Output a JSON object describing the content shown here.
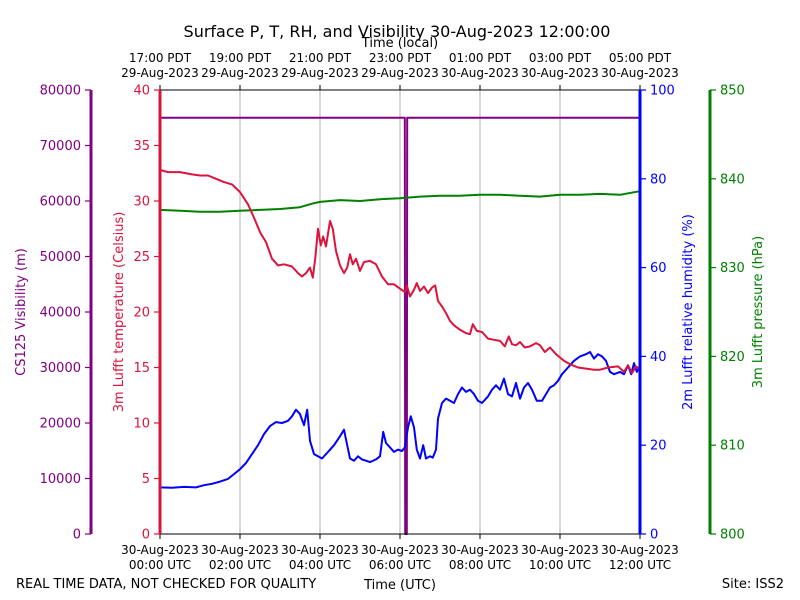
{
  "chart_data": {
    "type": "line",
    "title": "Surface P, T, RH, and Visibility 30-Aug-2023 12:00:00",
    "top_axis_label": "Time (local)",
    "bottom_axis_label": "Time (UTC)",
    "footer_left": "REAL TIME DATA, NOT CHECKED FOR QUALITY",
    "footer_right": "Site: ISS2",
    "colors": {
      "visibility": "#800080",
      "temperature": "#dc143c",
      "humidity": "#0000ff",
      "pressure": "#008000",
      "grid": "#b0b0b0"
    },
    "x_range_hours_utc": [
      0,
      12
    ],
    "x_ticks_hours": [
      0,
      2,
      4,
      6,
      8,
      10,
      12
    ],
    "bottom_tick_labels": [
      [
        "30-Aug-2023",
        "00:00 UTC"
      ],
      [
        "30-Aug-2023",
        "02:00 UTC"
      ],
      [
        "30-Aug-2023",
        "04:00 UTC"
      ],
      [
        "30-Aug-2023",
        "06:00 UTC"
      ],
      [
        "30-Aug-2023",
        "08:00 UTC"
      ],
      [
        "30-Aug-2023",
        "10:00 UTC"
      ],
      [
        "30-Aug-2023",
        "12:00 UTC"
      ]
    ],
    "top_tick_labels": [
      [
        "17:00 PDT",
        "29-Aug-2023"
      ],
      [
        "19:00 PDT",
        "29-Aug-2023"
      ],
      [
        "21:00 PDT",
        "29-Aug-2023"
      ],
      [
        "23:00 PDT",
        "29-Aug-2023"
      ],
      [
        "01:00 PDT",
        "30-Aug-2023"
      ],
      [
        "03:00 PDT",
        "30-Aug-2023"
      ],
      [
        "05:00 PDT",
        "30-Aug-2023"
      ]
    ],
    "axes": {
      "visibility": {
        "label": "CS125 Visibility (m)",
        "range": [
          0,
          80000
        ],
        "ticks": [
          0,
          10000,
          20000,
          30000,
          40000,
          50000,
          60000,
          70000,
          80000
        ]
      },
      "temperature": {
        "label": "3m Lufft temperature (Celsius)",
        "range": [
          0,
          40
        ],
        "ticks": [
          0,
          5,
          10,
          15,
          20,
          25,
          30,
          35,
          40
        ]
      },
      "humidity": {
        "label": "2m Lufft relative humidity (%)",
        "range": [
          0,
          100
        ],
        "ticks": [
          0,
          20,
          40,
          60,
          80,
          100
        ]
      },
      "pressure": {
        "label": "3m Lufft pressure (hPa)",
        "range": [
          800,
          850
        ],
        "ticks": [
          800,
          810,
          820,
          830,
          840,
          850
        ]
      }
    },
    "grid": "vertical",
    "series": [
      {
        "name": "CS125 Visibility (m)",
        "axis": "visibility",
        "points": [
          [
            0,
            75000
          ],
          [
            6.12,
            75000
          ],
          [
            6.13,
            0
          ],
          [
            6.17,
            0
          ],
          [
            6.18,
            75000
          ],
          [
            12,
            75000
          ]
        ]
      },
      {
        "name": "3m Lufft temperature (Celsius)",
        "axis": "temperature",
        "points": [
          [
            0,
            32.8
          ],
          [
            0.2,
            32.6
          ],
          [
            0.5,
            32.6
          ],
          [
            0.8,
            32.4
          ],
          [
            1.0,
            32.3
          ],
          [
            1.2,
            32.3
          ],
          [
            1.4,
            32.0
          ],
          [
            1.6,
            31.7
          ],
          [
            1.8,
            31.5
          ],
          [
            2.0,
            30.8
          ],
          [
            2.2,
            29.7
          ],
          [
            2.35,
            28.5
          ],
          [
            2.5,
            27.2
          ],
          [
            2.65,
            26.3
          ],
          [
            2.8,
            24.8
          ],
          [
            2.95,
            24.2
          ],
          [
            3.1,
            24.3
          ],
          [
            3.3,
            24.1
          ],
          [
            3.45,
            23.5
          ],
          [
            3.55,
            23.2
          ],
          [
            3.65,
            23.5
          ],
          [
            3.75,
            24.0
          ],
          [
            3.82,
            23.1
          ],
          [
            3.88,
            24.8
          ],
          [
            3.95,
            27.5
          ],
          [
            4.02,
            26.0
          ],
          [
            4.08,
            26.8
          ],
          [
            4.15,
            25.9
          ],
          [
            4.25,
            28.2
          ],
          [
            4.32,
            27.5
          ],
          [
            4.4,
            25.5
          ],
          [
            4.5,
            24.2
          ],
          [
            4.6,
            23.5
          ],
          [
            4.68,
            24.0
          ],
          [
            4.75,
            25.2
          ],
          [
            4.82,
            24.3
          ],
          [
            4.9,
            24.8
          ],
          [
            5.0,
            23.7
          ],
          [
            5.1,
            24.5
          ],
          [
            5.25,
            24.6
          ],
          [
            5.4,
            24.3
          ],
          [
            5.55,
            23.2
          ],
          [
            5.7,
            22.5
          ],
          [
            5.85,
            22.5
          ],
          [
            6.0,
            22.1
          ],
          [
            6.12,
            21.8
          ],
          [
            6.17,
            22.4
          ],
          [
            6.25,
            21.4
          ],
          [
            6.35,
            22.0
          ],
          [
            6.42,
            22.6
          ],
          [
            6.5,
            21.9
          ],
          [
            6.6,
            22.3
          ],
          [
            6.7,
            21.7
          ],
          [
            6.8,
            22.2
          ],
          [
            6.88,
            22.4
          ],
          [
            6.95,
            21.0
          ],
          [
            7.05,
            20.5
          ],
          [
            7.15,
            19.9
          ],
          [
            7.25,
            19.2
          ],
          [
            7.35,
            18.8
          ],
          [
            7.5,
            18.4
          ],
          [
            7.65,
            18.1
          ],
          [
            7.75,
            18.0
          ],
          [
            7.82,
            18.9
          ],
          [
            7.92,
            18.3
          ],
          [
            8.05,
            18.2
          ],
          [
            8.2,
            17.6
          ],
          [
            8.35,
            17.5
          ],
          [
            8.5,
            17.4
          ],
          [
            8.62,
            16.9
          ],
          [
            8.72,
            17.8
          ],
          [
            8.8,
            17.1
          ],
          [
            8.9,
            17.0
          ],
          [
            9.0,
            17.3
          ],
          [
            9.12,
            16.8
          ],
          [
            9.25,
            16.9
          ],
          [
            9.4,
            17.2
          ],
          [
            9.5,
            17.0
          ],
          [
            9.62,
            16.4
          ],
          [
            9.75,
            16.8
          ],
          [
            9.9,
            16.2
          ],
          [
            10.0,
            15.9
          ],
          [
            10.1,
            15.6
          ],
          [
            10.25,
            15.3
          ],
          [
            10.45,
            15.0
          ],
          [
            10.65,
            14.9
          ],
          [
            10.85,
            14.8
          ],
          [
            11.0,
            14.8
          ],
          [
            11.2,
            15.0
          ],
          [
            11.45,
            15.1
          ],
          [
            11.6,
            14.6
          ],
          [
            11.7,
            15.2
          ],
          [
            11.8,
            14.5
          ],
          [
            11.9,
            15.1
          ],
          [
            12.0,
            14.8
          ]
        ]
      },
      {
        "name": "2m Lufft relative humidity (%)",
        "axis": "humidity",
        "points": [
          [
            0,
            10.5
          ],
          [
            0.3,
            10.4
          ],
          [
            0.6,
            10.6
          ],
          [
            0.9,
            10.5
          ],
          [
            1.1,
            11.0
          ],
          [
            1.3,
            11.3
          ],
          [
            1.5,
            11.8
          ],
          [
            1.7,
            12.4
          ],
          [
            1.85,
            13.5
          ],
          [
            2.0,
            14.6
          ],
          [
            2.15,
            16.0
          ],
          [
            2.3,
            18.0
          ],
          [
            2.45,
            20.0
          ],
          [
            2.6,
            22.5
          ],
          [
            2.75,
            24.3
          ],
          [
            2.9,
            25.2
          ],
          [
            3.05,
            25.0
          ],
          [
            3.2,
            25.5
          ],
          [
            3.3,
            26.5
          ],
          [
            3.4,
            28.0
          ],
          [
            3.5,
            27.0
          ],
          [
            3.6,
            24.5
          ],
          [
            3.68,
            28.0
          ],
          [
            3.75,
            21.0
          ],
          [
            3.85,
            18.0
          ],
          [
            3.95,
            17.5
          ],
          [
            4.05,
            17.0
          ],
          [
            4.2,
            18.5
          ],
          [
            4.35,
            20.0
          ],
          [
            4.5,
            22.0
          ],
          [
            4.6,
            23.5
          ],
          [
            4.68,
            20.0
          ],
          [
            4.75,
            17.0
          ],
          [
            4.85,
            16.5
          ],
          [
            4.95,
            17.5
          ],
          [
            5.05,
            16.8
          ],
          [
            5.15,
            16.5
          ],
          [
            5.25,
            16.2
          ],
          [
            5.4,
            16.8
          ],
          [
            5.5,
            17.5
          ],
          [
            5.58,
            23.0
          ],
          [
            5.65,
            20.5
          ],
          [
            5.75,
            19.5
          ],
          [
            5.85,
            18.5
          ],
          [
            5.95,
            19.0
          ],
          [
            6.05,
            18.7
          ],
          [
            6.12,
            19.5
          ],
          [
            6.2,
            24.0
          ],
          [
            6.27,
            26.5
          ],
          [
            6.35,
            24.0
          ],
          [
            6.42,
            19.0
          ],
          [
            6.5,
            17.0
          ],
          [
            6.58,
            20.0
          ],
          [
            6.65,
            17.0
          ],
          [
            6.75,
            17.5
          ],
          [
            6.82,
            17.2
          ],
          [
            6.9,
            19.0
          ],
          [
            6.95,
            26.0
          ],
          [
            7.05,
            29.5
          ],
          [
            7.15,
            30.5
          ],
          [
            7.25,
            30.0
          ],
          [
            7.35,
            29.5
          ],
          [
            7.45,
            31.5
          ],
          [
            7.55,
            33.0
          ],
          [
            7.65,
            32.0
          ],
          [
            7.75,
            32.5
          ],
          [
            7.85,
            31.5
          ],
          [
            7.95,
            30.0
          ],
          [
            8.05,
            29.5
          ],
          [
            8.2,
            31.0
          ],
          [
            8.3,
            32.5
          ],
          [
            8.4,
            33.5
          ],
          [
            8.5,
            32.5
          ],
          [
            8.6,
            35.0
          ],
          [
            8.7,
            31.5
          ],
          [
            8.8,
            31.0
          ],
          [
            8.9,
            34.0
          ],
          [
            9.0,
            30.5
          ],
          [
            9.1,
            33.0
          ],
          [
            9.2,
            34.0
          ],
          [
            9.3,
            32.5
          ],
          [
            9.42,
            30.0
          ],
          [
            9.55,
            30.0
          ],
          [
            9.65,
            31.5
          ],
          [
            9.75,
            33.0
          ],
          [
            9.85,
            33.5
          ],
          [
            9.95,
            34.5
          ],
          [
            10.05,
            36.0
          ],
          [
            10.2,
            37.5
          ],
          [
            10.35,
            39.0
          ],
          [
            10.5,
            40.0
          ],
          [
            10.65,
            40.5
          ],
          [
            10.75,
            41.0
          ],
          [
            10.85,
            39.5
          ],
          [
            10.95,
            40.5
          ],
          [
            11.05,
            40.0
          ],
          [
            11.15,
            39.0
          ],
          [
            11.25,
            36.5
          ],
          [
            11.35,
            36.0
          ],
          [
            11.5,
            36.5
          ],
          [
            11.6,
            36.0
          ],
          [
            11.7,
            38.0
          ],
          [
            11.78,
            36.0
          ],
          [
            11.85,
            38.5
          ],
          [
            11.92,
            36.5
          ],
          [
            12.0,
            38.0
          ]
        ]
      },
      {
        "name": "3m Lufft pressure (hPa)",
        "axis": "pressure",
        "points": [
          [
            0,
            836.5
          ],
          [
            0.5,
            836.4
          ],
          [
            1.0,
            836.3
          ],
          [
            1.5,
            836.3
          ],
          [
            2.0,
            836.4
          ],
          [
            2.5,
            836.5
          ],
          [
            3.0,
            836.6
          ],
          [
            3.5,
            836.8
          ],
          [
            3.8,
            837.2
          ],
          [
            4.0,
            837.4
          ],
          [
            4.5,
            837.6
          ],
          [
            5.0,
            837.5
          ],
          [
            5.5,
            837.7
          ],
          [
            6.0,
            837.8
          ],
          [
            6.5,
            838.0
          ],
          [
            7.0,
            838.1
          ],
          [
            7.5,
            838.1
          ],
          [
            8.0,
            838.2
          ],
          [
            8.5,
            838.2
          ],
          [
            9.0,
            838.1
          ],
          [
            9.5,
            838.0
          ],
          [
            10.0,
            838.2
          ],
          [
            10.5,
            838.2
          ],
          [
            11.0,
            838.3
          ],
          [
            11.5,
            838.2
          ],
          [
            12.0,
            838.6
          ]
        ]
      }
    ]
  }
}
